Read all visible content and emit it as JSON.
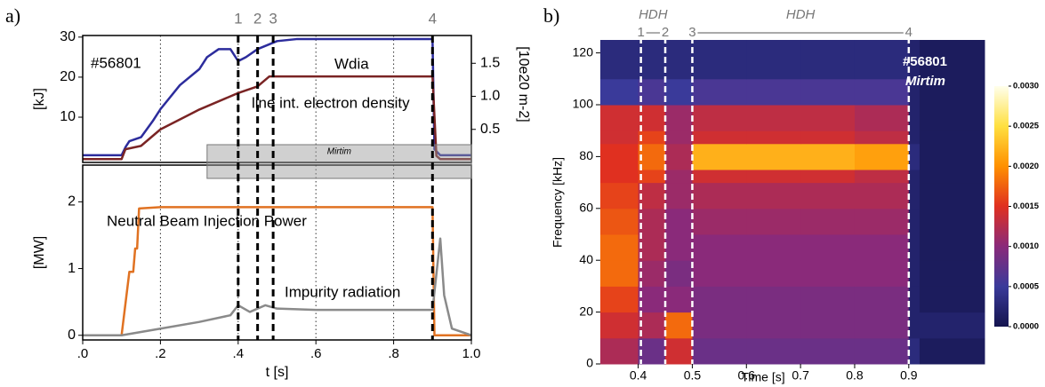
{
  "chart_data": [
    {
      "type": "line",
      "panel": "a)",
      "id_label": "#56801",
      "xlim": [
        0,
        1
      ],
      "xticks": [
        0.2,
        0.4,
        0.6,
        0.8
      ],
      "ylim": [
        -1.3,
        30.4
      ],
      "yticks": [
        10,
        20,
        30
      ],
      "ylabel": "[kJ]",
      "y2lim": [
        0,
        1.92
      ],
      "y2ticks": [
        0.5,
        {
          "value": 1,
          "label": "1.0"
        },
        1.5
      ],
      "y2label": "[10e20 m-2]",
      "shaded_region": {
        "xlim": [
          0.32,
          1.0
        ],
        "label": "Mirtim"
      },
      "markers": [
        {
          "x": 0.4,
          "label": "1"
        },
        {
          "x": 0.45,
          "label": "2"
        },
        {
          "x": 0.49,
          "label": "3"
        },
        {
          "x": 0.9,
          "label": "4"
        }
      ],
      "series": [
        {
          "name": "Wdia",
          "color": "#2c2c9c",
          "x": [
            0.0,
            0.1,
            0.11,
            0.12,
            0.15,
            0.18,
            0.2,
            0.25,
            0.3,
            0.32,
            0.35,
            0.38,
            0.4,
            0.42,
            0.45,
            0.5,
            0.55,
            0.9,
            0.905,
            0.92,
            1.0
          ],
          "values": [
            0.5,
            0.5,
            2.5,
            4,
            5,
            9,
            12,
            18,
            22,
            25,
            27,
            27,
            24,
            25,
            27,
            29,
            29.5,
            29.5,
            2,
            0.5,
            0.5
          ]
        },
        {
          "name": "line int. electron density",
          "color": "#7a2424",
          "axis": "y2",
          "x": [
            0.0,
            0.1,
            0.11,
            0.15,
            0.2,
            0.3,
            0.4,
            0.45,
            0.48,
            0.5,
            0.9,
            0.91,
            0.92,
            1.0
          ],
          "values": [
            0.05,
            0.05,
            0.2,
            0.25,
            0.5,
            0.8,
            1.05,
            1.15,
            1.3,
            1.3,
            1.3,
            0.1,
            0.05,
            0.05
          ]
        }
      ]
    },
    {
      "type": "line",
      "xlabel": "t [s]",
      "xlim": [
        0,
        1
      ],
      "xticks": [
        {
          "value": 0,
          "label": ".0"
        },
        {
          "value": 0.2,
          "label": ".2"
        },
        {
          "value": 0.4,
          "label": ".4"
        },
        {
          "value": 0.6,
          "label": ".6"
        },
        {
          "value": 0.8,
          "label": ".8"
        },
        {
          "value": 1,
          "label": "1.0"
        }
      ],
      "ylim": [
        -0.07,
        2.55
      ],
      "yticks": [
        0,
        1,
        2
      ],
      "ylabel": "[MW]",
      "series": [
        {
          "name": "Neutral Beam Injection Power",
          "color": "#e07222",
          "x": [
            0.0,
            0.1,
            0.12,
            0.13,
            0.135,
            0.14,
            0.145,
            0.2,
            0.9,
            0.905,
            1.0
          ],
          "values": [
            0,
            0,
            0.95,
            0.95,
            1.3,
            1.3,
            1.9,
            1.92,
            1.92,
            0,
            0
          ]
        },
        {
          "name": "Impurity radiation",
          "color": "#8a8a8a",
          "x": [
            0.0,
            0.1,
            0.2,
            0.3,
            0.38,
            0.4,
            0.43,
            0.47,
            0.5,
            0.6,
            0.9,
            0.92,
            0.93,
            0.95,
            1.0
          ],
          "values": [
            0,
            0,
            0.1,
            0.2,
            0.3,
            0.45,
            0.35,
            0.45,
            0.4,
            0.38,
            0.38,
            1.45,
            0.6,
            0.1,
            0
          ]
        }
      ]
    },
    {
      "type": "heatmap",
      "panel": "b)",
      "id_label": "#56801",
      "note": "Mirtim",
      "xlabel": "Time [s]",
      "ylabel": "Frequency [kHz]",
      "xlim": [
        0.33,
        1.04
      ],
      "xticks": [
        0.4,
        0.5,
        0.6,
        0.7,
        0.8,
        0.9
      ],
      "ylim": [
        0,
        125
      ],
      "yticks": [
        0,
        20,
        40,
        60,
        80,
        100,
        120
      ],
      "markers": [
        {
          "x": 0.405,
          "label": "1"
        },
        {
          "x": 0.45,
          "label": "2"
        },
        {
          "x": 0.5,
          "label": "3"
        },
        {
          "x": 0.9,
          "label": "4"
        }
      ],
      "regions": [
        {
          "label": "HDH",
          "xlim": [
            0.405,
            0.45
          ]
        },
        {
          "label": "HDH",
          "xlim": [
            0.5,
            0.9
          ]
        }
      ],
      "xbins": [
        0.33,
        0.4,
        0.45,
        0.5,
        0.6,
        0.7,
        0.8,
        0.9,
        0.92,
        1.04
      ],
      "ybins": [
        0,
        10,
        20,
        30,
        40,
        50,
        60,
        70,
        75,
        85,
        90,
        100,
        110,
        125
      ],
      "z": [
        [
          0.0012,
          0.0008,
          0.0014,
          0.0008,
          0.0008,
          0.0008,
          0.0008,
          0.0003,
          0.0001
        ],
        [
          0.0014,
          0.0012,
          0.0018,
          0.0009,
          0.0009,
          0.0009,
          0.0009,
          0.0002,
          0.0002
        ],
        [
          0.0016,
          0.001,
          0.001,
          0.0009,
          0.0009,
          0.0009,
          0.0009,
          0.0002,
          0.0001
        ],
        [
          0.0018,
          0.0011,
          0.0009,
          0.001,
          0.001,
          0.001,
          0.001,
          0.0002,
          0.0001
        ],
        [
          0.0018,
          0.0012,
          0.001,
          0.001,
          0.001,
          0.001,
          0.001,
          0.0002,
          0.0001
        ],
        [
          0.0017,
          0.0012,
          0.001,
          0.0011,
          0.0011,
          0.0011,
          0.0011,
          0.0002,
          0.0001
        ],
        [
          0.0016,
          0.0013,
          0.0011,
          0.0012,
          0.0012,
          0.0012,
          0.0012,
          0.0002,
          0.0001
        ],
        [
          0.0015,
          0.0016,
          0.0011,
          0.0014,
          0.0014,
          0.0014,
          0.0013,
          0.0002,
          0.0001
        ],
        [
          0.0015,
          0.0018,
          0.0012,
          0.0022,
          0.0022,
          0.0022,
          0.0021,
          0.0003,
          0.0001
        ],
        [
          0.0014,
          0.0016,
          0.0011,
          0.0014,
          0.0014,
          0.0014,
          0.0013,
          0.0002,
          0.0001
        ],
        [
          0.0014,
          0.0014,
          0.0011,
          0.0013,
          0.0013,
          0.0013,
          0.0012,
          0.0002,
          0.0001
        ],
        [
          0.0005,
          0.0006,
          0.0005,
          0.0006,
          0.0006,
          0.0006,
          0.0006,
          0.0002,
          0.0001
        ],
        [
          0.0003,
          0.0003,
          0.0003,
          0.0003,
          0.0003,
          0.0003,
          0.0003,
          0.0002,
          0.0001
        ]
      ],
      "colormap": [
        "#14144e",
        "#3a3a9a",
        "#8a2a7a",
        "#e03020",
        "#ff9000",
        "#ffe040",
        "#ffffec"
      ],
      "clim": [
        0,
        0.003
      ],
      "cticks": [
        {
          "value": 0,
          "label": "0.0000"
        },
        0.0005,
        {
          "value": 0.001,
          "label": "0.0010"
        },
        0.0015,
        {
          "value": 0.002,
          "label": "0.0020"
        },
        0.0025,
        {
          "value": 0.003,
          "label": "0.0030"
        }
      ]
    }
  ]
}
